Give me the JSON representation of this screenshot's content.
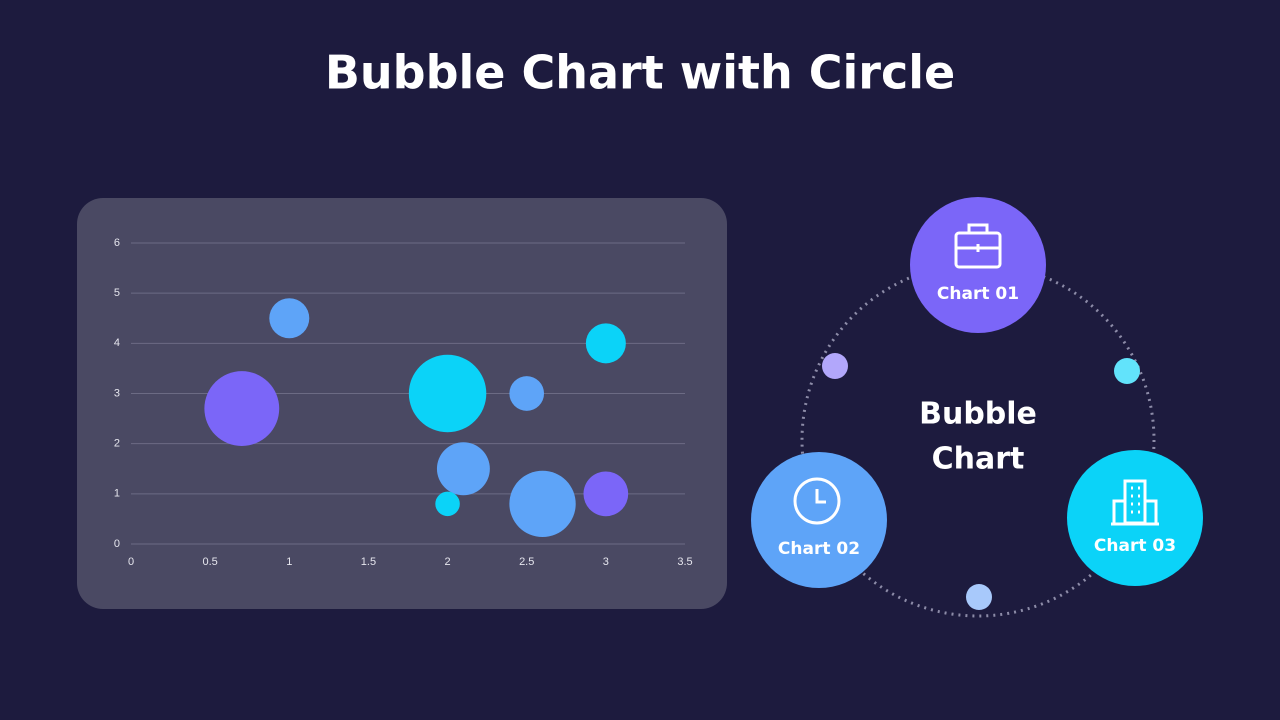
{
  "title": "Bubble Chart with Circle",
  "chart_data": {
    "type": "bubble",
    "xlim": [
      0,
      3.5
    ],
    "xticks": [
      0,
      0.5,
      1,
      1.5,
      2,
      2.5,
      3,
      3.5
    ],
    "ylim": [
      0,
      6
    ],
    "yticks": [
      0,
      1,
      2,
      3,
      4,
      5,
      6
    ],
    "grid": true,
    "series": [
      {
        "color": "#7b66f8",
        "x": [
          0.7,
          3
        ],
        "values": [
          2.7,
          1
        ],
        "sizes": [
          14,
          5
        ]
      },
      {
        "color": "#5ea4f8",
        "x": [
          1,
          2.5,
          2.1,
          2.6
        ],
        "values": [
          4.5,
          3,
          1.5,
          0.8
        ],
        "sizes": [
          4,
          3,
          7,
          11
        ]
      },
      {
        "color": "#0bd3f8",
        "x": [
          2,
          3,
          2
        ],
        "values": [
          3,
          4,
          0.8
        ],
        "sizes": [
          15,
          4,
          1.5
        ]
      }
    ]
  },
  "diagram": {
    "center": [
      "Bubble",
      "Chart"
    ],
    "nodes": [
      {
        "label": "Chart 01"
      },
      {
        "label": "Chart 02"
      },
      {
        "label": "Chart 03"
      }
    ]
  }
}
